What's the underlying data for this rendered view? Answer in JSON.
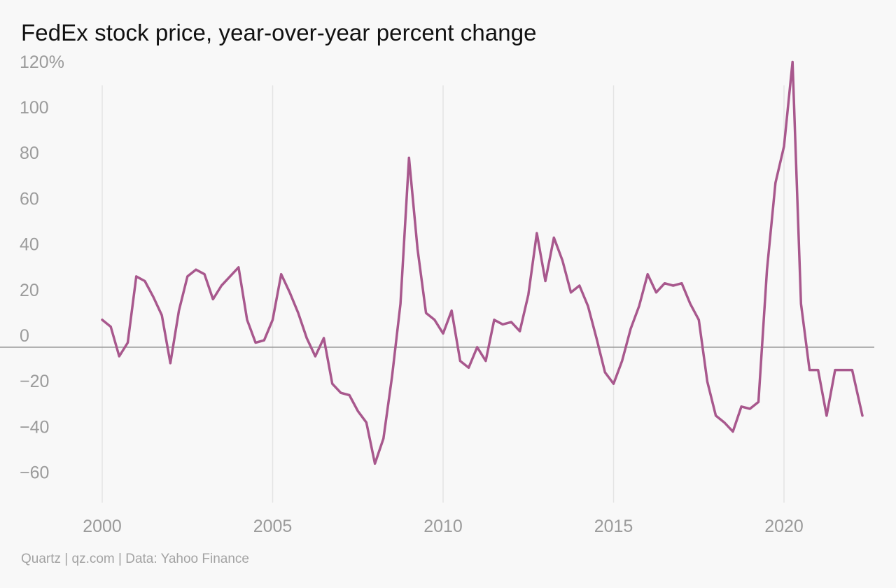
{
  "header": {
    "title": "FedEx stock price, year-over-year percent change"
  },
  "footer": {
    "source": "Quartz | qz.com | Data: Yahoo Finance"
  },
  "chart_data": {
    "type": "line",
    "title": "FedEx stock price, year-over-year percent change",
    "xlabel": "",
    "ylabel": "",
    "xlim": [
      2000,
      2022.3
    ],
    "ylim": [
      -70,
      120
    ],
    "x_ticks": [
      {
        "value": 2000,
        "label": "2000"
      },
      {
        "value": 2005,
        "label": "2005"
      },
      {
        "value": 2010,
        "label": "2010"
      },
      {
        "value": 2015,
        "label": "2015"
      },
      {
        "value": 2020,
        "label": "2020"
      }
    ],
    "y_ticks": [
      {
        "value": 120,
        "label": "120%"
      },
      {
        "value": 100,
        "label": "100"
      },
      {
        "value": 80,
        "label": "80"
      },
      {
        "value": 60,
        "label": "60"
      },
      {
        "value": 40,
        "label": "40"
      },
      {
        "value": 20,
        "label": "20"
      },
      {
        "value": 0,
        "label": "0"
      },
      {
        "value": -20,
        "label": "−20"
      },
      {
        "value": -40,
        "label": "−40"
      },
      {
        "value": -60,
        "label": "−60"
      }
    ],
    "grid": "vertical at x ticks",
    "zero_line": true,
    "line_color": "#a8588d",
    "series": [
      {
        "x": [
          2000.0,
          2000.25,
          2000.5,
          2000.75,
          2001.0,
          2001.25,
          2001.5,
          2001.75,
          2002.0,
          2002.25,
          2002.5,
          2002.75,
          2003.0,
          2003.25,
          2003.5,
          2003.75,
          2004.0,
          2004.25,
          2004.5,
          2004.75,
          2005.0,
          2005.25,
          2005.5,
          2005.75,
          2006.0,
          2006.25,
          2006.5,
          2006.75,
          2007.0,
          2007.25,
          2007.5,
          2007.75,
          2008.0,
          2008.25,
          2008.5,
          2008.75,
          2009.0,
          2009.25,
          2009.5,
          2009.75,
          2010.0,
          2010.25,
          2010.5,
          2010.75,
          2011.0,
          2011.25,
          2011.5,
          2011.75,
          2012.0,
          2012.25,
          2012.5,
          2012.75,
          2013.0,
          2013.25,
          2013.5,
          2013.75,
          2014.0,
          2014.25,
          2014.5,
          2014.75,
          2015.0,
          2015.25,
          2015.5,
          2015.75,
          2016.0,
          2016.25,
          2016.5,
          2016.75,
          2017.0,
          2017.25,
          2017.5,
          2017.75,
          2018.0,
          2018.25,
          2018.5,
          2018.75,
          2019.0,
          2019.25,
          2019.5,
          2019.75,
          2020.0,
          2020.25,
          2020.5,
          2020.75,
          2021.0,
          2021.25,
          2021.5,
          2021.75,
          2022.0,
          2022.3
        ],
        "y": [
          12,
          9,
          -4,
          2,
          31,
          29,
          22,
          14,
          -7,
          16,
          31,
          34,
          32,
          21,
          27,
          31,
          35,
          12,
          2,
          3,
          12,
          32,
          24,
          15,
          4,
          -4,
          4,
          -16,
          -20,
          -21,
          -28,
          -33,
          -51,
          -40,
          -13,
          19,
          83,
          43,
          15,
          12,
          6,
          16,
          -6,
          -9,
          0,
          -6,
          12,
          10,
          11,
          7,
          23,
          50,
          29,
          48,
          38,
          24,
          27,
          18,
          4,
          -11,
          -16,
          -6,
          8,
          18,
          32,
          24,
          28,
          27,
          28,
          19,
          12,
          -15,
          -30,
          -33,
          -37,
          -26,
          -27,
          -24,
          34,
          72,
          88,
          125,
          19,
          -10,
          -10,
          -30,
          -10,
          -10,
          -10,
          -30
        ]
      }
    ]
  }
}
